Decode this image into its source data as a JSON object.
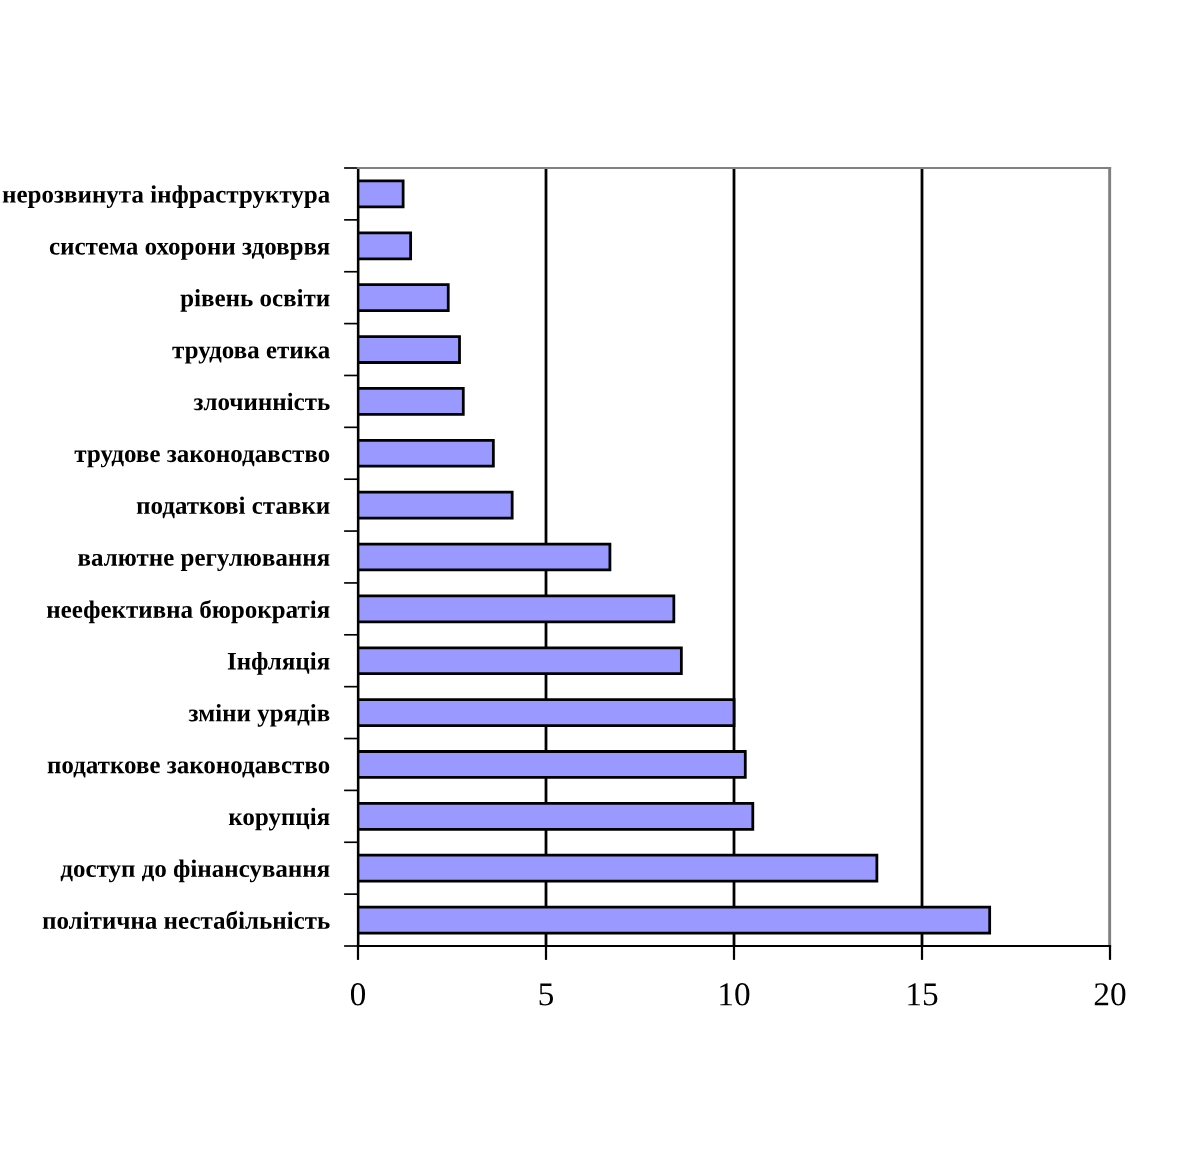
{
  "chart_data": {
    "type": "bar",
    "orientation": "horizontal",
    "categories": [
      "нерозвинута інфраструктура",
      "система охорони здоврвя",
      "рівень освіти",
      "трудова етика",
      "злочинність",
      "трудове законодавство",
      "податкові ставки",
      "валютне регулювання",
      "неефективна бюрократія",
      "Інфляція",
      "зміни урядів",
      "податкове законодавство",
      "корупція",
      "доступ до фінансування",
      "політична нестабільність"
    ],
    "values": [
      1.2,
      1.4,
      2.4,
      2.7,
      2.8,
      3.6,
      4.1,
      6.7,
      8.4,
      8.6,
      10.0,
      10.3,
      10.5,
      13.8,
      16.8
    ],
    "color": "#9999ff",
    "xlim": [
      0,
      20
    ],
    "xticks": [
      0,
      5,
      10,
      15,
      20
    ],
    "grid": "x"
  }
}
